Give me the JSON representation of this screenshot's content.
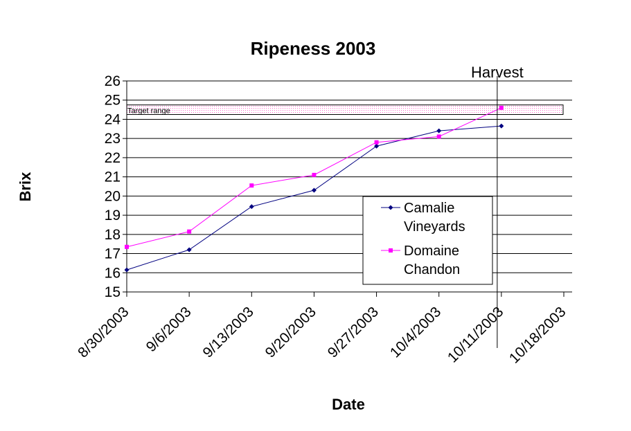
{
  "chart_data": {
    "type": "line",
    "title": "Ripeness 2003",
    "xlabel": "Date",
    "ylabel": "Brix",
    "ylim": [
      15,
      26
    ],
    "yticks": [
      "15",
      "16",
      "17",
      "18",
      "19",
      "20",
      "21",
      "22",
      "23",
      "24",
      "25",
      "26"
    ],
    "xlim": [
      "2003-08-30",
      "2003-10-18"
    ],
    "xticks": [
      "8/30/2003",
      "9/6/2003",
      "9/13/2003",
      "9/20/2003",
      "9/27/2003",
      "10/4/2003",
      "10/11/2003",
      "10/18/2003"
    ],
    "grid": true,
    "legend_position": "right",
    "series": [
      {
        "name": "Camalie Vineyards",
        "name_lines": [
          "Camalie",
          "Vineyards"
        ],
        "color": "#000080",
        "marker": "diamond",
        "x": [
          "2003-08-30",
          "2003-09-06",
          "2003-09-13",
          "2003-09-20",
          "2003-09-27",
          "2003-10-04",
          "2003-10-11"
        ],
        "y": [
          16.15,
          17.2,
          19.45,
          20.3,
          22.6,
          23.4,
          23.65
        ]
      },
      {
        "name": "Domaine Chandon",
        "name_lines": [
          "Domaine",
          "Chandon"
        ],
        "color": "#ff00ff",
        "marker": "square",
        "x": [
          "2003-08-30",
          "2003-09-06",
          "2003-09-13",
          "2003-09-20",
          "2003-09-27",
          "2003-10-04",
          "2003-10-11"
        ],
        "y": [
          17.35,
          18.15,
          20.55,
          21.1,
          22.8,
          23.1,
          24.6
        ]
      }
    ],
    "target_range": {
      "label": "Target range",
      "ymin": 24.25,
      "ymax": 24.75
    },
    "harvest_marker": {
      "label": "Harvest",
      "x": "2003-10-11"
    }
  }
}
